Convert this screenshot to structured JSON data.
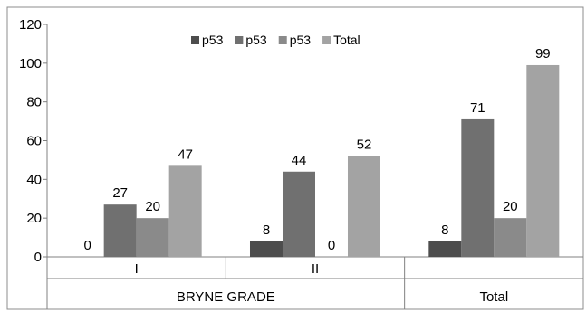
{
  "chart_data": {
    "type": "bar",
    "title": "",
    "xlabel": "",
    "ylabel": "",
    "ylim": [
      0,
      120
    ],
    "y_ticks": [
      "0",
      "20",
      "40",
      "60",
      "80",
      "100",
      "120"
    ],
    "grid": false,
    "legend_position": "top-center",
    "categories": [
      "I",
      "II",
      "Total"
    ],
    "category_groups": [
      {
        "label": "BRYNE GRADE",
        "categories": [
          "I",
          "II"
        ]
      },
      {
        "label": "Total",
        "categories": [
          "Total"
        ]
      }
    ],
    "series": [
      {
        "name": "p53",
        "color": "#4d4d4d",
        "values": [
          0,
          8,
          8
        ]
      },
      {
        "name": "p53",
        "color": "#707070",
        "values": [
          27,
          44,
          71
        ]
      },
      {
        "name": "p53",
        "color": "#8a8a8a",
        "values": [
          20,
          0,
          20
        ]
      },
      {
        "name": "Total",
        "color": "#a3a3a3",
        "values": [
          47,
          52,
          99
        ]
      }
    ]
  }
}
